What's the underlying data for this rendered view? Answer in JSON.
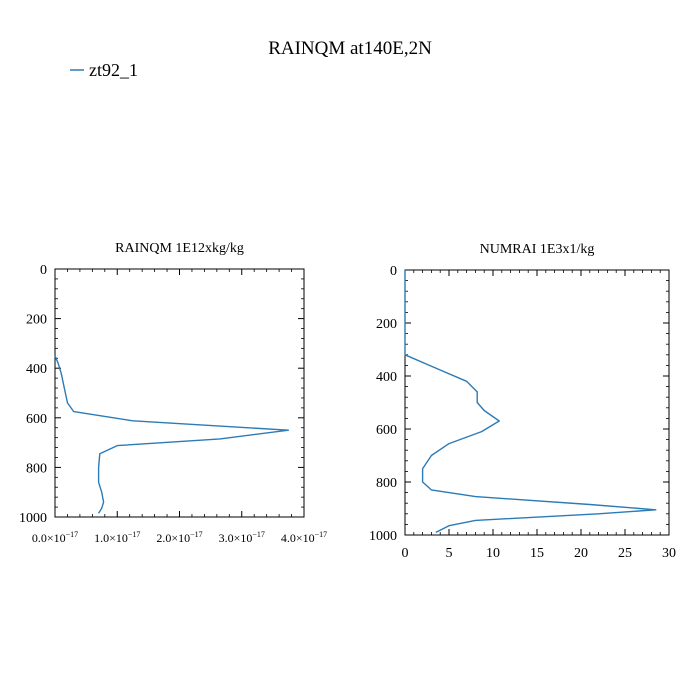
{
  "title": "RAINQM at140E,2N",
  "legend": {
    "label": "zt92_1",
    "color": "#2c7bb6"
  },
  "line_color": "#2c7bb6",
  "chart_data": [
    {
      "type": "line",
      "title": "RAINQM  1E12xkg/kg",
      "xlabel": "",
      "ylabel": "",
      "xlim": [
        0,
        4e-17
      ],
      "ylim": [
        1000,
        0
      ],
      "y_inverted": true,
      "xticks": [
        0,
        1e-17,
        2e-17,
        3e-17,
        4e-17
      ],
      "xtick_labels": [
        {
          "mant": "0.0",
          "exp": "−17"
        },
        {
          "mant": "1.0",
          "exp": "−17"
        },
        {
          "mant": "2.0",
          "exp": "−17"
        },
        {
          "mant": "3.0",
          "exp": "−17"
        },
        {
          "mant": "4.0",
          "exp": "−17"
        }
      ],
      "yticks": [
        0,
        200,
        400,
        600,
        800,
        1000
      ],
      "ytick_labels": [
        "0",
        "200",
        "400",
        "600",
        "800",
        "1000"
      ],
      "grid": false,
      "series": [
        {
          "name": "zt92_1",
          "x": [
            0,
            5e-19,
            1e-18,
            1.5e-18,
            2e-18,
            3e-18,
            1.25e-17,
            3.75e-17,
            2.65e-17,
            1e-17,
            7.2e-18,
            7e-18,
            7e-18,
            7.5e-18,
            7.8e-18,
            7.5e-18,
            7e-18
          ],
          "y": [
            350,
            380,
            420,
            480,
            540,
            575,
            612,
            650,
            685,
            712,
            745,
            800,
            860,
            900,
            940,
            965,
            985
          ]
        }
      ]
    },
    {
      "type": "line",
      "title": "NUMRAI  1E3x1/kg",
      "xlabel": "",
      "ylabel": "",
      "xlim": [
        0,
        30
      ],
      "ylim": [
        1000,
        0
      ],
      "y_inverted": true,
      "xticks": [
        0,
        5,
        10,
        15,
        20,
        25,
        30
      ],
      "xtick_labels": [
        "0",
        "5",
        "10",
        "15",
        "20",
        "25",
        "30"
      ],
      "yticks": [
        0,
        200,
        400,
        600,
        800,
        1000
      ],
      "ytick_labels": [
        "0",
        "200",
        "400",
        "600",
        "800",
        "1000"
      ],
      "grid": false,
      "series": [
        {
          "name": "zt92_1",
          "x": [
            0,
            0,
            3.5,
            7,
            8.2,
            8.2,
            9,
            10.7,
            8.7,
            5,
            3,
            2,
            2,
            3,
            8,
            21,
            28.5,
            22,
            8,
            5,
            3.5
          ],
          "y": [
            0,
            320,
            370,
            420,
            460,
            500,
            530,
            570,
            610,
            655,
            700,
            750,
            800,
            830,
            855,
            885,
            905,
            920,
            945,
            965,
            990
          ]
        }
      ]
    }
  ]
}
